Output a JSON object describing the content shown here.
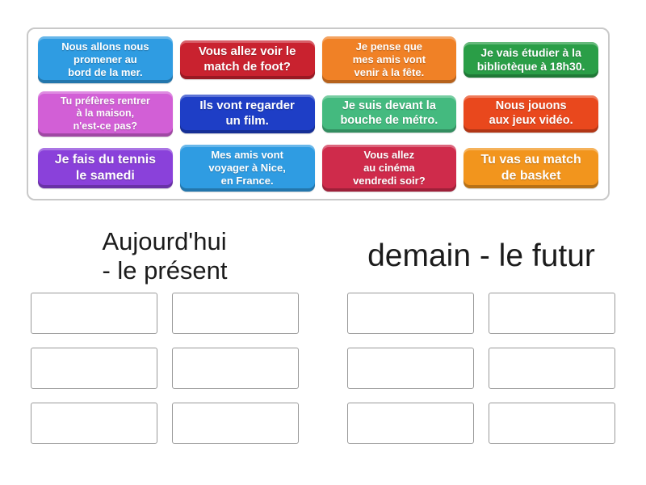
{
  "tray": {
    "cards": [
      {
        "text": "Nous allons nous\npromener au\nbord de la mer.",
        "color": "#2f9ce2",
        "size": 13
      },
      {
        "text": "Vous allez voir le\nmatch de foot?",
        "color": "#c9222f",
        "size": 15
      },
      {
        "text": "Je pense que\nmes amis vont\nvenir à la fête.",
        "color": "#f08126",
        "size": 13
      },
      {
        "text": "Je vais étudier à la\nbibliotèque à 18h30.",
        "color": "#2a9e47",
        "size": 14
      },
      {
        "text": "Tu préfères rentrer\nà la maison,\nn'est-ce pas?",
        "color": "#d25fd6",
        "size": 12.5
      },
      {
        "text": "Ils vont regarder\nun film.",
        "color": "#1e3ec6",
        "size": 15
      },
      {
        "text": "Je suis devant la\nbouche de métro.",
        "color": "#44ba7f",
        "size": 14.5
      },
      {
        "text": "Nous jouons\naux jeux vidéo.",
        "color": "#e9481d",
        "size": 14.5
      },
      {
        "text": "Je fais du tennis\nle samedi",
        "color": "#8a41da",
        "size": 16
      },
      {
        "text": "Mes amis vont\nvoyager à Nice,\nen France.",
        "color": "#2f9ce2",
        "size": 13
      },
      {
        "text": "Vous allez\nau cinéma\nvendredi soir?",
        "color": "#cf2b4b",
        "size": 13
      },
      {
        "text": "Tu vas au match\nde basket",
        "color": "#f2951d",
        "size": 16
      }
    ]
  },
  "groups": [
    {
      "title": "Aujourd'hui\n- le présent",
      "slot_count": 6
    },
    {
      "title": "demain - le futur",
      "slot_count": 6
    }
  ]
}
